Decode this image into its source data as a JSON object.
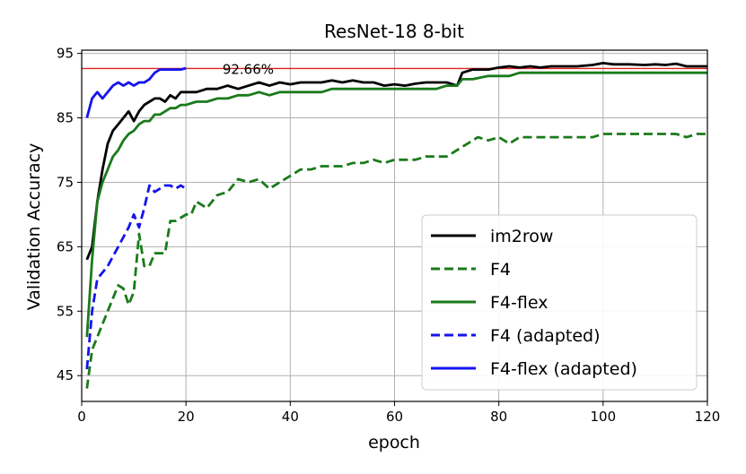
{
  "chart_data": {
    "type": "line",
    "title": "ResNet-18 8-bit",
    "xlabel": "epoch",
    "ylabel": "Validation Accuracy",
    "xlim": [
      0,
      120
    ],
    "ylim": [
      41,
      95.5
    ],
    "xticks": [
      0,
      20,
      40,
      60,
      80,
      100,
      120
    ],
    "yticks": [
      45,
      55,
      65,
      75,
      85,
      95
    ],
    "grid": true,
    "legend_position": "lower-right",
    "reference_line": {
      "y": 92.66,
      "color": "#dd2222",
      "label": "92.66%",
      "label_x": 27
    },
    "series": [
      {
        "name": "im2row",
        "color": "#000000",
        "style": "solid",
        "points": [
          [
            1,
            63
          ],
          [
            2,
            65
          ],
          [
            3,
            72
          ],
          [
            4,
            77
          ],
          [
            5,
            81
          ],
          [
            6,
            83
          ],
          [
            7,
            84
          ],
          [
            8,
            85
          ],
          [
            9,
            86
          ],
          [
            10,
            84.5
          ],
          [
            11,
            86
          ],
          [
            12,
            87
          ],
          [
            13,
            87.5
          ],
          [
            14,
            88
          ],
          [
            15,
            88
          ],
          [
            16,
            87.5
          ],
          [
            17,
            88.5
          ],
          [
            18,
            88
          ],
          [
            19,
            89
          ],
          [
            20,
            89
          ],
          [
            22,
            89
          ],
          [
            24,
            89.5
          ],
          [
            26,
            89.5
          ],
          [
            28,
            90
          ],
          [
            30,
            89.5
          ],
          [
            32,
            90
          ],
          [
            34,
            90.5
          ],
          [
            36,
            90
          ],
          [
            38,
            90.5
          ],
          [
            40,
            90.2
          ],
          [
            42,
            90.5
          ],
          [
            44,
            90.5
          ],
          [
            46,
            90.5
          ],
          [
            48,
            90.8
          ],
          [
            50,
            90.5
          ],
          [
            52,
            90.8
          ],
          [
            54,
            90.5
          ],
          [
            56,
            90.5
          ],
          [
            58,
            90
          ],
          [
            60,
            90.2
          ],
          [
            62,
            90
          ],
          [
            64,
            90.3
          ],
          [
            66,
            90.5
          ],
          [
            68,
            90.5
          ],
          [
            70,
            90.5
          ],
          [
            72,
            90
          ],
          [
            73,
            92
          ],
          [
            75,
            92.5
          ],
          [
            78,
            92.5
          ],
          [
            80,
            92.8
          ],
          [
            82,
            93
          ],
          [
            84,
            92.8
          ],
          [
            86,
            93
          ],
          [
            88,
            92.8
          ],
          [
            90,
            93
          ],
          [
            92,
            93
          ],
          [
            95,
            93
          ],
          [
            98,
            93.2
          ],
          [
            100,
            93.5
          ],
          [
            102,
            93.3
          ],
          [
            105,
            93.3
          ],
          [
            108,
            93.2
          ],
          [
            110,
            93.3
          ],
          [
            112,
            93.2
          ],
          [
            114,
            93.4
          ],
          [
            116,
            93
          ],
          [
            118,
            93
          ],
          [
            120,
            93
          ]
        ]
      },
      {
        "name": "F4",
        "color": "#1a7a1a",
        "style": "dashed",
        "points": [
          [
            1,
            43
          ],
          [
            2,
            49
          ],
          [
            3,
            51
          ],
          [
            4,
            53
          ],
          [
            5,
            55
          ],
          [
            6,
            57
          ],
          [
            7,
            59
          ],
          [
            8,
            58.5
          ],
          [
            9,
            56
          ],
          [
            10,
            58
          ],
          [
            11,
            67
          ],
          [
            12,
            62
          ],
          [
            13,
            62
          ],
          [
            14,
            64
          ],
          [
            15,
            64
          ],
          [
            16,
            64
          ],
          [
            17,
            69
          ],
          [
            18,
            69
          ],
          [
            19,
            69.5
          ],
          [
            20,
            70
          ],
          [
            21,
            70
          ],
          [
            22,
            72
          ],
          [
            24,
            71
          ],
          [
            26,
            73
          ],
          [
            28,
            73.5
          ],
          [
            30,
            75.5
          ],
          [
            32,
            75
          ],
          [
            34,
            75.5
          ],
          [
            36,
            74
          ],
          [
            38,
            75
          ],
          [
            40,
            76
          ],
          [
            42,
            77
          ],
          [
            44,
            77
          ],
          [
            46,
            77.5
          ],
          [
            48,
            77.5
          ],
          [
            50,
            77.5
          ],
          [
            52,
            78
          ],
          [
            54,
            78
          ],
          [
            56,
            78.5
          ],
          [
            58,
            78
          ],
          [
            60,
            78.5
          ],
          [
            62,
            78.5
          ],
          [
            64,
            78.5
          ],
          [
            66,
            79
          ],
          [
            68,
            79
          ],
          [
            70,
            79
          ],
          [
            72,
            80
          ],
          [
            74,
            81
          ],
          [
            76,
            82
          ],
          [
            78,
            81.5
          ],
          [
            80,
            82
          ],
          [
            82,
            81
          ],
          [
            84,
            82
          ],
          [
            86,
            82
          ],
          [
            88,
            82
          ],
          [
            90,
            82
          ],
          [
            92,
            82
          ],
          [
            94,
            82
          ],
          [
            96,
            82
          ],
          [
            98,
            82
          ],
          [
            100,
            82.5
          ],
          [
            102,
            82.5
          ],
          [
            104,
            82.5
          ],
          [
            106,
            82.5
          ],
          [
            108,
            82.5
          ],
          [
            110,
            82.5
          ],
          [
            112,
            82.5
          ],
          [
            114,
            82.5
          ],
          [
            116,
            82
          ],
          [
            118,
            82.5
          ],
          [
            120,
            82.5
          ]
        ]
      },
      {
        "name": "F4-flex",
        "color": "#1a7a1a",
        "style": "solid",
        "points": [
          [
            1,
            51
          ],
          [
            2,
            63
          ],
          [
            3,
            72
          ],
          [
            4,
            75
          ],
          [
            5,
            77
          ],
          [
            6,
            79
          ],
          [
            7,
            80
          ],
          [
            8,
            81.5
          ],
          [
            9,
            82.5
          ],
          [
            10,
            83
          ],
          [
            11,
            84
          ],
          [
            12,
            84.5
          ],
          [
            13,
            84.5
          ],
          [
            14,
            85.5
          ],
          [
            15,
            85.5
          ],
          [
            16,
            86
          ],
          [
            17,
            86.5
          ],
          [
            18,
            86.5
          ],
          [
            19,
            87
          ],
          [
            20,
            87
          ],
          [
            22,
            87.5
          ],
          [
            24,
            87.5
          ],
          [
            26,
            88
          ],
          [
            28,
            88
          ],
          [
            30,
            88.5
          ],
          [
            32,
            88.5
          ],
          [
            34,
            89
          ],
          [
            36,
            88.5
          ],
          [
            38,
            89
          ],
          [
            40,
            89
          ],
          [
            42,
            89
          ],
          [
            44,
            89
          ],
          [
            46,
            89
          ],
          [
            48,
            89.5
          ],
          [
            50,
            89.5
          ],
          [
            52,
            89.5
          ],
          [
            54,
            89.5
          ],
          [
            56,
            89.5
          ],
          [
            58,
            89.5
          ],
          [
            60,
            89.5
          ],
          [
            62,
            89.5
          ],
          [
            64,
            89.5
          ],
          [
            66,
            89.5
          ],
          [
            68,
            89.5
          ],
          [
            70,
            90
          ],
          [
            72,
            90
          ],
          [
            73,
            91
          ],
          [
            75,
            91
          ],
          [
            78,
            91.5
          ],
          [
            80,
            91.5
          ],
          [
            82,
            91.5
          ],
          [
            84,
            92
          ],
          [
            86,
            92
          ],
          [
            88,
            92
          ],
          [
            90,
            92
          ],
          [
            92,
            92
          ],
          [
            95,
            92
          ],
          [
            98,
            92
          ],
          [
            100,
            92
          ],
          [
            102,
            92
          ],
          [
            105,
            92
          ],
          [
            108,
            92
          ],
          [
            110,
            92
          ],
          [
            112,
            92
          ],
          [
            114,
            92
          ],
          [
            116,
            92
          ],
          [
            118,
            92
          ],
          [
            120,
            92
          ]
        ]
      },
      {
        "name": "F4 (adapted)",
        "color": "#1414ee",
        "style": "dashed",
        "points": [
          [
            1,
            46
          ],
          [
            2,
            55
          ],
          [
            3,
            60
          ],
          [
            4,
            61
          ],
          [
            5,
            62
          ],
          [
            6,
            63.5
          ],
          [
            7,
            65
          ],
          [
            8,
            66.5
          ],
          [
            9,
            68
          ],
          [
            10,
            70
          ],
          [
            11,
            68
          ],
          [
            12,
            71
          ],
          [
            13,
            74.5
          ],
          [
            14,
            73.5
          ],
          [
            15,
            74
          ],
          [
            16,
            74.5
          ],
          [
            17,
            74.5
          ],
          [
            18,
            74
          ],
          [
            19,
            74.5
          ],
          [
            20,
            74
          ]
        ]
      },
      {
        "name": "F4-flex (adapted)",
        "color": "#1414ee",
        "style": "solid",
        "points": [
          [
            1,
            85
          ],
          [
            2,
            88
          ],
          [
            3,
            89
          ],
          [
            4,
            88
          ],
          [
            5,
            89
          ],
          [
            6,
            90
          ],
          [
            7,
            90.5
          ],
          [
            8,
            90
          ],
          [
            9,
            90.5
          ],
          [
            10,
            90
          ],
          [
            11,
            90.5
          ],
          [
            12,
            90.5
          ],
          [
            13,
            91
          ],
          [
            14,
            92
          ],
          [
            15,
            92.5
          ],
          [
            16,
            92.5
          ],
          [
            17,
            92.5
          ],
          [
            18,
            92.5
          ],
          [
            19,
            92.5
          ],
          [
            20,
            92.7
          ]
        ]
      }
    ]
  }
}
